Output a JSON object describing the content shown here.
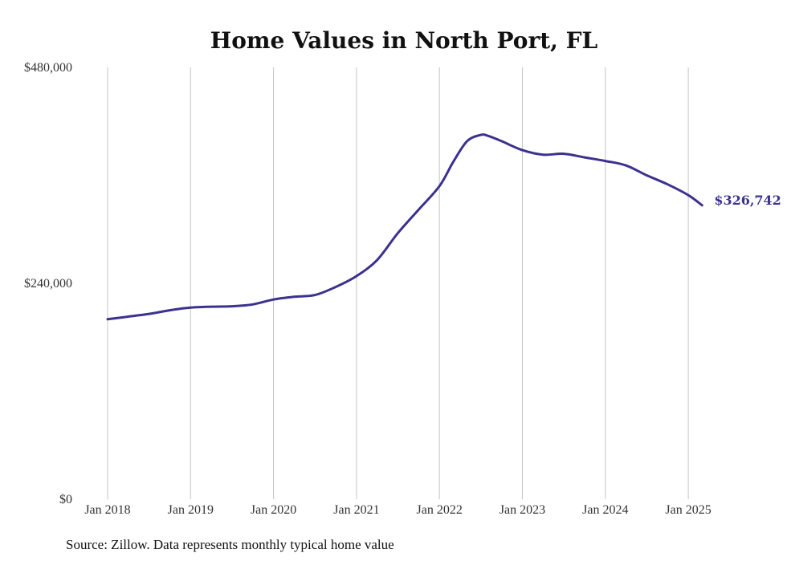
{
  "chart_data": {
    "type": "line",
    "title": "Home Values in North Port, FL",
    "xlabel": "",
    "ylabel": "",
    "ylim": [
      0,
      480000
    ],
    "y_ticks": [
      "$0",
      "$240,000",
      "$480,000"
    ],
    "y_tick_values": [
      0,
      240000,
      480000
    ],
    "x_ticks": [
      "Jan 2018",
      "Jan 2019",
      "Jan 2020",
      "Jan 2021",
      "Jan 2022",
      "Jan 2023",
      "Jan 2024",
      "Jan 2025"
    ],
    "grid": "vertical",
    "line_color": "#3b3290",
    "end_label": "$326,742",
    "source": "Source: Zillow. Data represents monthly typical home value",
    "series": [
      {
        "x": [
          "2018-01",
          "2018-04",
          "2018-07",
          "2018-10",
          "2019-01",
          "2019-04",
          "2019-07",
          "2019-10",
          "2020-01",
          "2020-04",
          "2020-07",
          "2020-10",
          "2021-01",
          "2021-04",
          "2021-07",
          "2021-10",
          "2022-01",
          "2022-03",
          "2022-05",
          "2022-07",
          "2022-08",
          "2022-10",
          "2023-01",
          "2023-04",
          "2023-07",
          "2023-10",
          "2024-01",
          "2024-04",
          "2024-07",
          "2024-10",
          "2025-01",
          "2025-03"
        ],
        "values": [
          200000,
          203000,
          206000,
          210000,
          213000,
          214000,
          214500,
          216500,
          222000,
          225000,
          227000,
          236000,
          248000,
          266000,
          296000,
          322000,
          348000,
          375000,
          398000,
          405000,
          404000,
          398000,
          388000,
          383000,
          384000,
          380000,
          376000,
          371000,
          360000,
          350000,
          338000,
          326742
        ]
      }
    ]
  }
}
